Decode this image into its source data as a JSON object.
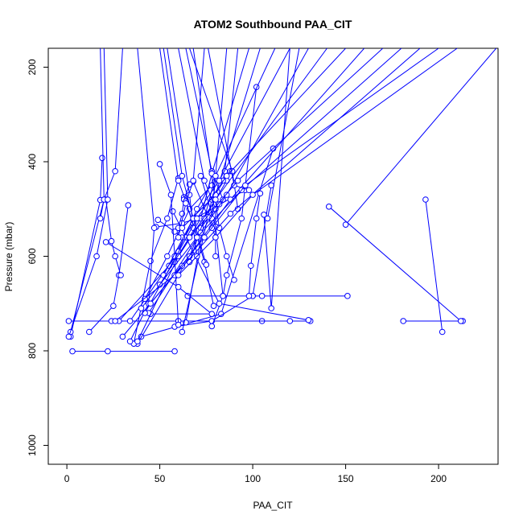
{
  "chart_data": {
    "type": "line",
    "title": "ATOM2 Southbound PAA_CIT",
    "xlabel": "PAA_CIT",
    "ylabel": "Pressure (mbar)",
    "xlim": [
      -10,
      232
    ],
    "ylim": [
      1040,
      160
    ],
    "y_reversed": true,
    "grid": false,
    "legend": "none",
    "marker": "open-circle",
    "xticks": [
      0,
      50,
      100,
      150,
      200
    ],
    "yticks": [
      200,
      400,
      600,
      800,
      1000
    ],
    "xtick_labels": [
      "0",
      "50",
      "100",
      "150",
      "200"
    ],
    "ytick_labels": [
      "200",
      "400",
      "600",
      "800",
      "1000"
    ],
    "color": "#0000ff",
    "series": [
      {
        "points": [
          [
            193,
            480
          ],
          [
            202,
            760
          ]
        ]
      },
      {
        "points": [
          [
            213,
            737
          ],
          [
            181,
            737
          ]
        ]
      },
      {
        "points": [
          [
            150,
            533
          ],
          [
            231,
            160
          ]
        ]
      },
      {
        "points": [
          [
            141,
            495
          ],
          [
            212,
            737
          ]
        ]
      },
      {
        "points": [
          [
            151,
            684
          ],
          [
            100,
            684
          ],
          [
            105,
            684
          ],
          [
            65,
            684
          ]
        ]
      },
      {
        "points": [
          [
            131,
            737
          ],
          [
            105,
            737
          ],
          [
            60,
            737
          ],
          [
            1,
            737
          ]
        ]
      },
      {
        "points": [
          [
            120,
            737
          ],
          [
            60,
            737
          ],
          [
            24,
            737
          ]
        ]
      },
      {
        "points": [
          [
            58,
            801
          ],
          [
            22,
            801
          ],
          [
            3,
            801
          ]
        ]
      },
      {
        "points": [
          [
            111,
            372
          ],
          [
            83,
            722
          ],
          [
            40,
            770
          ]
        ]
      },
      {
        "points": [
          [
            110,
            450
          ],
          [
            100,
            684
          ],
          [
            78,
            737
          ],
          [
            58,
            749
          ]
        ]
      },
      {
        "points": [
          [
            102,
            242
          ],
          [
            94,
            520
          ],
          [
            86,
            640
          ],
          [
            84,
            684
          ]
        ]
      },
      {
        "points": [
          [
            104,
            467
          ],
          [
            102,
            520
          ],
          [
            99,
            620
          ],
          [
            98,
            684
          ]
        ]
      },
      {
        "points": [
          [
            106,
            512
          ],
          [
            110,
            710
          ],
          [
            120,
            160
          ]
        ]
      },
      {
        "points": [
          [
            108,
            520
          ],
          [
            125,
            160
          ]
        ]
      },
      {
        "points": [
          [
            86,
            440
          ],
          [
            74,
            520
          ],
          [
            64,
            740
          ]
        ]
      },
      {
        "points": [
          [
            88,
            420
          ],
          [
            78,
            480
          ],
          [
            62,
            760
          ]
        ]
      },
      {
        "points": [
          [
            96,
            460
          ],
          [
            69,
            520
          ],
          [
            55,
            620
          ],
          [
            28,
            737
          ]
        ]
      },
      {
        "points": [
          [
            80,
            430
          ],
          [
            70,
            500
          ],
          [
            60,
            590
          ],
          [
            34,
            737
          ]
        ]
      },
      {
        "points": [
          [
            78,
            450
          ],
          [
            66,
            500
          ],
          [
            54,
            600
          ],
          [
            42,
            690
          ]
        ]
      },
      {
        "points": [
          [
            82,
            490
          ],
          [
            72,
            540
          ],
          [
            66,
            600
          ],
          [
            38,
            785
          ]
        ]
      },
      {
        "points": [
          [
            60,
            435
          ],
          [
            54,
            520
          ],
          [
            45,
            610
          ],
          [
            36,
            785
          ]
        ]
      },
      {
        "points": [
          [
            68,
            442
          ],
          [
            76,
            517
          ],
          [
            80,
            560
          ]
        ]
      },
      {
        "points": [
          [
            72,
            430
          ],
          [
            80,
            537
          ],
          [
            84,
            684
          ],
          [
            78,
            748
          ]
        ]
      },
      {
        "points": [
          [
            63,
            475
          ],
          [
            68,
            530
          ],
          [
            74,
            612
          ],
          [
            79,
            705
          ]
        ]
      },
      {
        "points": [
          [
            66,
            448
          ],
          [
            63,
            480
          ],
          [
            62,
            510
          ],
          [
            60,
            540
          ]
        ]
      },
      {
        "points": [
          [
            57,
            505
          ],
          [
            64,
            560
          ],
          [
            82,
            700
          ],
          [
            130,
            735
          ]
        ]
      },
      {
        "points": [
          [
            49,
            523
          ],
          [
            58,
            548
          ],
          [
            62,
            560
          ]
        ]
      },
      {
        "points": [
          [
            50,
            405
          ],
          [
            56,
            470
          ],
          [
            58,
            600
          ],
          [
            60,
            745
          ]
        ]
      },
      {
        "points": [
          [
            48,
            538
          ],
          [
            62,
            530
          ],
          [
            70,
            520
          ]
        ]
      },
      {
        "points": [
          [
            33,
            492
          ],
          [
            28,
            640
          ],
          [
            25,
            705
          ],
          [
            12,
            760
          ]
        ]
      },
      {
        "points": [
          [
            21,
            480
          ],
          [
            24,
            568
          ],
          [
            26,
            600
          ],
          [
            29,
            640
          ]
        ]
      },
      {
        "points": [
          [
            19,
            392
          ],
          [
            18,
            481
          ],
          [
            2,
            770
          ]
        ]
      },
      {
        "points": [
          [
            21,
            570
          ],
          [
            60,
            665
          ],
          [
            78,
            722
          ],
          [
            45,
            722
          ]
        ]
      },
      {
        "points": [
          [
            38,
            160
          ],
          [
            47,
            540
          ],
          [
            44,
            700
          ],
          [
            34,
            780
          ]
        ]
      },
      {
        "points": [
          [
            30,
            160
          ],
          [
            26,
            420
          ],
          [
            20,
            480
          ],
          [
            2,
            760
          ]
        ]
      },
      {
        "points": [
          [
            18,
            160
          ],
          [
            20,
            480
          ],
          [
            18,
            520
          ]
        ]
      },
      {
        "points": [
          [
            20,
            160
          ],
          [
            22,
            480
          ],
          [
            16,
            600
          ],
          [
            1,
            770
          ]
        ]
      },
      {
        "points": [
          [
            50,
            160
          ],
          [
            60,
            440
          ],
          [
            64,
            484
          ],
          [
            70,
            560
          ]
        ]
      },
      {
        "points": [
          [
            52,
            160
          ],
          [
            62,
            430
          ],
          [
            68,
            520
          ],
          [
            75,
            618
          ]
        ]
      },
      {
        "points": [
          [
            54,
            160
          ],
          [
            66,
            470
          ],
          [
            68,
            540
          ],
          [
            70,
            600
          ]
        ]
      },
      {
        "points": [
          [
            60,
            160
          ],
          [
            74,
            440
          ],
          [
            80,
            500
          ],
          [
            80,
            600
          ]
        ]
      },
      {
        "points": [
          [
            64,
            160
          ],
          [
            78,
            420
          ],
          [
            84,
            480
          ]
        ]
      },
      {
        "points": [
          [
            66,
            160
          ],
          [
            89,
            420
          ],
          [
            92,
            500
          ]
        ]
      },
      {
        "points": [
          [
            68,
            160
          ],
          [
            82,
            540
          ],
          [
            86,
            600
          ],
          [
            90,
            650
          ]
        ]
      },
      {
        "points": [
          [
            74,
            160
          ],
          [
            68,
            440
          ],
          [
            64,
            488
          ],
          [
            60,
            560
          ]
        ]
      },
      {
        "points": [
          [
            76,
            160
          ],
          [
            90,
            450
          ],
          [
            98,
            460
          ]
        ]
      },
      {
        "points": [
          [
            86,
            160
          ],
          [
            78,
            520
          ],
          [
            78,
            540
          ]
        ]
      },
      {
        "points": [
          [
            92,
            160
          ],
          [
            85,
            420
          ],
          [
            84,
            440
          ]
        ]
      },
      {
        "points": [
          [
            98,
            160
          ],
          [
            78,
            425
          ],
          [
            72,
            520
          ],
          [
            58,
            612
          ]
        ]
      },
      {
        "points": [
          [
            104,
            160
          ],
          [
            80,
            470
          ],
          [
            62,
            540
          ]
        ]
      },
      {
        "points": [
          [
            112,
            160
          ],
          [
            80,
            430
          ],
          [
            74,
            520
          ],
          [
            66,
            612
          ]
        ]
      },
      {
        "points": [
          [
            120,
            160
          ],
          [
            82,
            440
          ],
          [
            68,
            520
          ],
          [
            52,
            640
          ]
        ]
      },
      {
        "points": [
          [
            130,
            160
          ],
          [
            86,
            470
          ],
          [
            72,
            550
          ],
          [
            44,
            720
          ]
        ]
      },
      {
        "points": [
          [
            140,
            160
          ],
          [
            80,
            480
          ],
          [
            60,
            600
          ],
          [
            38,
            780
          ]
        ]
      },
      {
        "points": [
          [
            150,
            160
          ],
          [
            86,
            430
          ],
          [
            70,
            520
          ],
          [
            42,
            720
          ]
        ]
      },
      {
        "points": [
          [
            160,
            160
          ],
          [
            88,
            480
          ],
          [
            62,
            620
          ],
          [
            30,
            770
          ]
        ]
      },
      {
        "points": [
          [
            170,
            160
          ],
          [
            92,
            440
          ],
          [
            66,
            560
          ],
          [
            50,
            660
          ]
        ]
      },
      {
        "points": [
          [
            180,
            160
          ],
          [
            94,
            460
          ],
          [
            70,
            560
          ],
          [
            40,
            710
          ]
        ]
      },
      {
        "points": [
          [
            190,
            160
          ],
          [
            88,
            510
          ],
          [
            58,
            640
          ],
          [
            26,
            737
          ]
        ]
      },
      {
        "points": [
          [
            200,
            160
          ],
          [
            96,
            450
          ],
          [
            74,
            560
          ],
          [
            45,
            700
          ]
        ]
      },
      {
        "points": [
          [
            210,
            160
          ],
          [
            100,
            470
          ],
          [
            80,
            560
          ],
          [
            60,
            640
          ]
        ]
      }
    ]
  }
}
